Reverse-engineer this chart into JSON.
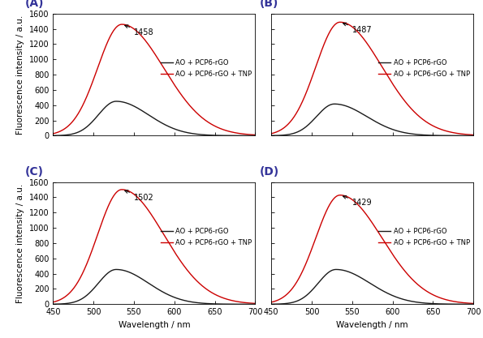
{
  "panels": [
    {
      "label": "A",
      "peak_ann": 1458,
      "red_amp": 1458,
      "blk_amp": 450,
      "r_pk": 535,
      "r_sl": 30,
      "r_sr": 52,
      "b_pk": 528,
      "b_sl": 22,
      "b_sr": 40
    },
    {
      "label": "B",
      "peak_ann": 1487,
      "red_amp": 1487,
      "blk_amp": 415,
      "r_pk": 535,
      "r_sl": 30,
      "r_sr": 52,
      "b_pk": 528,
      "b_sl": 22,
      "b_sr": 40
    },
    {
      "label": "C",
      "peak_ann": 1502,
      "red_amp": 1502,
      "blk_amp": 455,
      "r_pk": 535,
      "r_sl": 30,
      "r_sr": 52,
      "b_pk": 528,
      "b_sl": 22,
      "b_sr": 40
    },
    {
      "label": "D",
      "peak_ann": 1429,
      "red_amp": 1429,
      "blk_amp": 455,
      "r_pk": 535,
      "r_sl": 30,
      "r_sr": 52,
      "b_pk": 530,
      "b_sl": 22,
      "b_sr": 42
    }
  ],
  "xlim": [
    450,
    700
  ],
  "ylim": [
    0,
    1600
  ],
  "xlabel": "Wavelength / nm",
  "ylabel": "Fluorescence intensity / a.u.",
  "yticks": [
    0,
    200,
    400,
    600,
    800,
    1000,
    1200,
    1400,
    1600
  ],
  "xticks": [
    450,
    500,
    550,
    600,
    650,
    700
  ],
  "legend_black": "AO + PCP6-rGO",
  "legend_red": "AO + PCP6-rGO + TNP",
  "red_color": "#cc0000",
  "black_color": "#1a1a1a",
  "label_fontsize": 10,
  "tick_fontsize": 7,
  "axis_label_fontsize": 7.5,
  "legend_fontsize": 6,
  "annotation_fontsize": 7
}
